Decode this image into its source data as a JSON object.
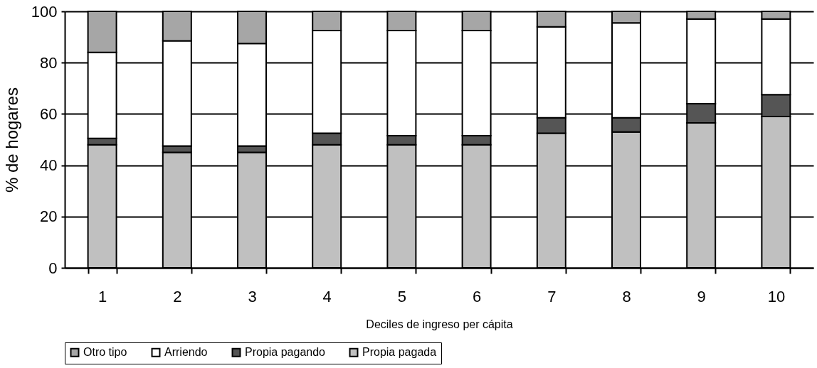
{
  "chart_data": {
    "type": "bar",
    "stacked": true,
    "xlabel": "Deciles de ingreso per cápita",
    "ylabel": "% de hogares",
    "categories": [
      "1",
      "2",
      "3",
      "4",
      "5",
      "6",
      "7",
      "8",
      "9",
      "10"
    ],
    "series": [
      {
        "name": "Propia pagada",
        "color": "#c0c0c0",
        "values": [
          48,
          45,
          45,
          48,
          48,
          48,
          52.5,
          53,
          56.5,
          59
        ]
      },
      {
        "name": "Propia pagando",
        "color": "#555555",
        "values": [
          2.5,
          2.5,
          2.5,
          4.5,
          3.5,
          3.5,
          6,
          5.5,
          7.5,
          8.5
        ]
      },
      {
        "name": "Arriendo",
        "color": "#ffffff",
        "values": [
          33.5,
          41,
          40,
          40,
          41,
          41,
          35.5,
          37,
          33,
          29.5
        ]
      },
      {
        "name": "Otro tipo",
        "color": "#a6a6a6",
        "values": [
          16,
          11.5,
          12.5,
          7.5,
          7.5,
          7.5,
          6,
          4.5,
          3,
          3
        ]
      }
    ],
    "ylim": [
      0,
      100
    ],
    "yticks": [
      0,
      20,
      40,
      60,
      80,
      100
    ],
    "grid": "y",
    "legend": "bottom"
  }
}
